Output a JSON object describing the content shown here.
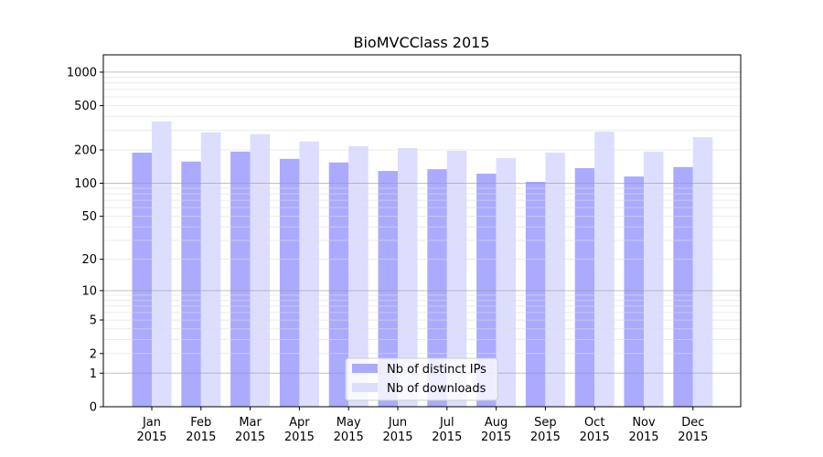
{
  "chart_data": {
    "type": "bar",
    "title": "BioMVCClass 2015",
    "xlabel": "",
    "ylabel": "",
    "yscale": "log(y+1)",
    "ylim": [
      0,
      1430
    ],
    "yticks": [
      0,
      1,
      2,
      5,
      10,
      20,
      50,
      100,
      200,
      500,
      1000
    ],
    "grid": true,
    "legend_placement": "lower center",
    "categories": [
      "Jan\n2015",
      "Feb\n2015",
      "Mar\n2015",
      "Apr\n2015",
      "May\n2015",
      "Jun\n2015",
      "Jul\n2015",
      "Aug\n2015",
      "Sep\n2015",
      "Oct\n2015",
      "Nov\n2015",
      "Dec\n2015"
    ],
    "series": [
      {
        "name": "Nb of distinct IPs",
        "color": "#aaaaff",
        "values": [
          189,
          157,
          193,
          166,
          154,
          129,
          134,
          122,
          103,
          137,
          115,
          140
        ]
      },
      {
        "name": "Nb of downloads",
        "color": "#ddddff",
        "values": [
          360,
          288,
          277,
          238,
          216,
          208,
          196,
          169,
          189,
          292,
          193,
          261
        ]
      }
    ]
  }
}
